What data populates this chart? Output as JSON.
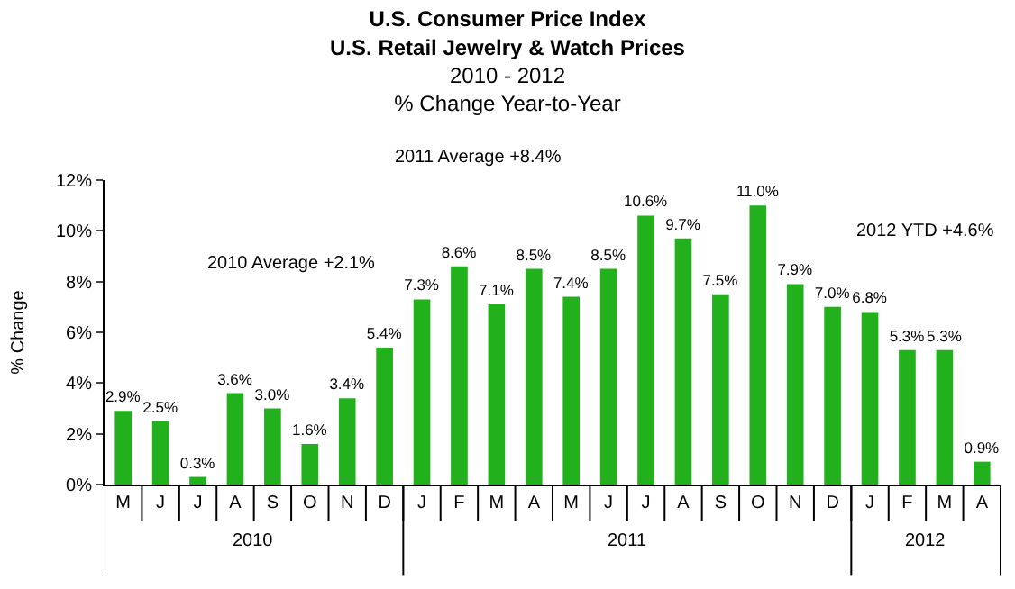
{
  "chart_data": {
    "type": "bar",
    "title": "U.S. Consumer Price Index",
    "subtitle": "U.S. Retail Jewelry & Watch Prices\n2010 - 2012\n% Change Year-to-Year",
    "ylabel": "% Change",
    "categories": [
      "M",
      "J",
      "J",
      "A",
      "S",
      "O",
      "N",
      "D",
      "J",
      "F",
      "M",
      "A",
      "M",
      "J",
      "J",
      "A",
      "S",
      "O",
      "N",
      "D",
      "J",
      "F",
      "M",
      "A"
    ],
    "values": [
      2.9,
      2.5,
      0.3,
      3.6,
      3.0,
      1.6,
      3.4,
      5.4,
      7.3,
      8.6,
      7.1,
      8.5,
      7.4,
      8.5,
      10.6,
      9.7,
      7.5,
      11.0,
      7.9,
      7.0,
      6.8,
      5.3,
      5.3,
      0.9
    ],
    "value_labels": [
      "2.9%",
      "2.5%",
      "0.3%",
      "3.6%",
      "3.0%",
      "1.6%",
      "3.4%",
      "5.4%",
      "7.3%",
      "8.6%",
      "7.1%",
      "8.5%",
      "7.4%",
      "8.5%",
      "10.6%",
      "9.7%",
      "7.5%",
      "11.0%",
      "7.9%",
      "7.0%",
      "6.8%",
      "5.3%",
      "5.3%",
      "0.9%"
    ],
    "color": "#22b01c",
    "ylim": [
      0,
      12
    ],
    "yticks": [
      {
        "value": 0,
        "label": "0%"
      },
      {
        "value": 2,
        "label": "2%"
      },
      {
        "value": 4,
        "label": "4%"
      },
      {
        "value": 6,
        "label": "6%"
      },
      {
        "value": 8,
        "label": "8%"
      },
      {
        "value": 10,
        "label": "10%"
      },
      {
        "value": 12,
        "label": "12%"
      }
    ],
    "annotations": [
      "2010 Average +2.1%",
      "2011 Average +8.4%",
      "2012 YTD +4.6%",
      "2010",
      "2011",
      "2012"
    ],
    "legend": false
  }
}
